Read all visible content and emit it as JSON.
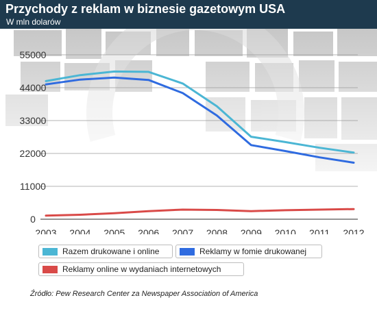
{
  "header": {
    "title": "Przychody z reklam w biznesie gazetowym USA",
    "subtitle": "W mln dolarów"
  },
  "colors": {
    "header_bg": "#1e3a4e",
    "total": "#4bb6d4",
    "print": "#2f6be0",
    "online": "#d94a48"
  },
  "legend": {
    "total": "Razem drukowane i online",
    "print": "Reklamy w fomie drukowanej",
    "online": "Reklamy online w wydaniach internetowych"
  },
  "source": "Źródło: Pew Research Center za Newspaper Association of America",
  "chart_data": {
    "type": "line",
    "x": [
      "2003",
      "2004",
      "2005",
      "2006",
      "2007",
      "2008",
      "2009",
      "2010",
      "2011",
      "2012"
    ],
    "ylim": [
      0,
      55000
    ],
    "yticks": [
      "0",
      "11000",
      "22000",
      "33000",
      "44000",
      "55000"
    ],
    "grid": true,
    "legend_position": "bottom",
    "series": [
      {
        "key": "total",
        "name": "Razem drukowane i online",
        "values": [
          46200,
          48200,
          49400,
          49300,
          45400,
          37800,
          27600,
          25800,
          23900,
          22300
        ]
      },
      {
        "key": "print",
        "name": "Reklamy w fomie drukowanej",
        "values": [
          45100,
          46700,
          47400,
          46600,
          42200,
          34700,
          24800,
          22800,
          20700,
          18900
        ]
      },
      {
        "key": "online",
        "name": "Reklamy online w wydaniach internetowych",
        "values": [
          1200,
          1500,
          2000,
          2700,
          3200,
          3100,
          2700,
          3000,
          3200,
          3400
        ]
      }
    ]
  }
}
